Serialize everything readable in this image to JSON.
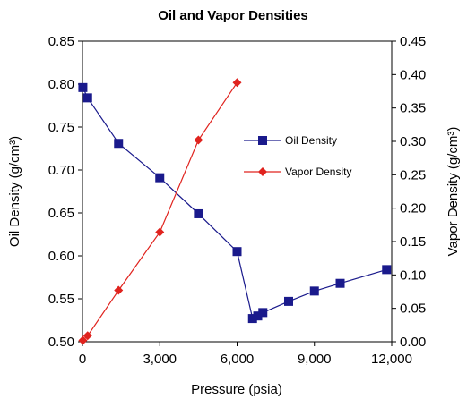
{
  "chart_data": {
    "type": "line",
    "title": "Oil and Vapor Densities",
    "xlabel": "Pressure (psia)",
    "ylabel_left": "Oil Density (g/cm³)",
    "ylabel_right": "Vapor Density (g/cm³)",
    "xlim": [
      0,
      12000
    ],
    "ylim_left": [
      0.5,
      0.85
    ],
    "ylim_right": [
      0.0,
      0.45
    ],
    "x_ticks": [
      0,
      3000,
      6000,
      9000,
      12000
    ],
    "x_tick_labels": [
      "0",
      "3,000",
      "6,000",
      "9,000",
      "12,000"
    ],
    "y_left_ticks": [
      0.5,
      0.55,
      0.6,
      0.65,
      0.7,
      0.75,
      0.8,
      0.85
    ],
    "y_left_tick_labels": [
      "0.50",
      "0.55",
      "0.60",
      "0.65",
      "0.70",
      "0.75",
      "0.80",
      "0.85"
    ],
    "y_right_ticks": [
      0.0,
      0.05,
      0.1,
      0.15,
      0.2,
      0.25,
      0.3,
      0.35,
      0.4,
      0.45
    ],
    "y_right_tick_labels": [
      "0.00",
      "0.05",
      "0.10",
      "0.15",
      "0.20",
      "0.25",
      "0.30",
      "0.35",
      "0.40",
      "0.45"
    ],
    "grid": false,
    "legend_position": "center-right",
    "series": [
      {
        "name": "Oil Density",
        "axis": "left",
        "color": "#1a1a8c",
        "marker": "square",
        "x": [
          15,
          200,
          1400,
          3000,
          4500,
          6000,
          6600,
          6800,
          7000,
          8000,
          9000,
          10000,
          11800
        ],
        "y": [
          0.796,
          0.784,
          0.731,
          0.691,
          0.649,
          0.605,
          0.527,
          0.53,
          0.534,
          0.547,
          0.559,
          0.568,
          0.584
        ]
      },
      {
        "name": "Vapor Density",
        "axis": "right",
        "color": "#e0231e",
        "marker": "diamond",
        "x": [
          15,
          200,
          1400,
          3000,
          4500,
          6000
        ],
        "y": [
          0.002,
          0.009,
          0.077,
          0.164,
          0.302,
          0.388
        ]
      }
    ]
  }
}
